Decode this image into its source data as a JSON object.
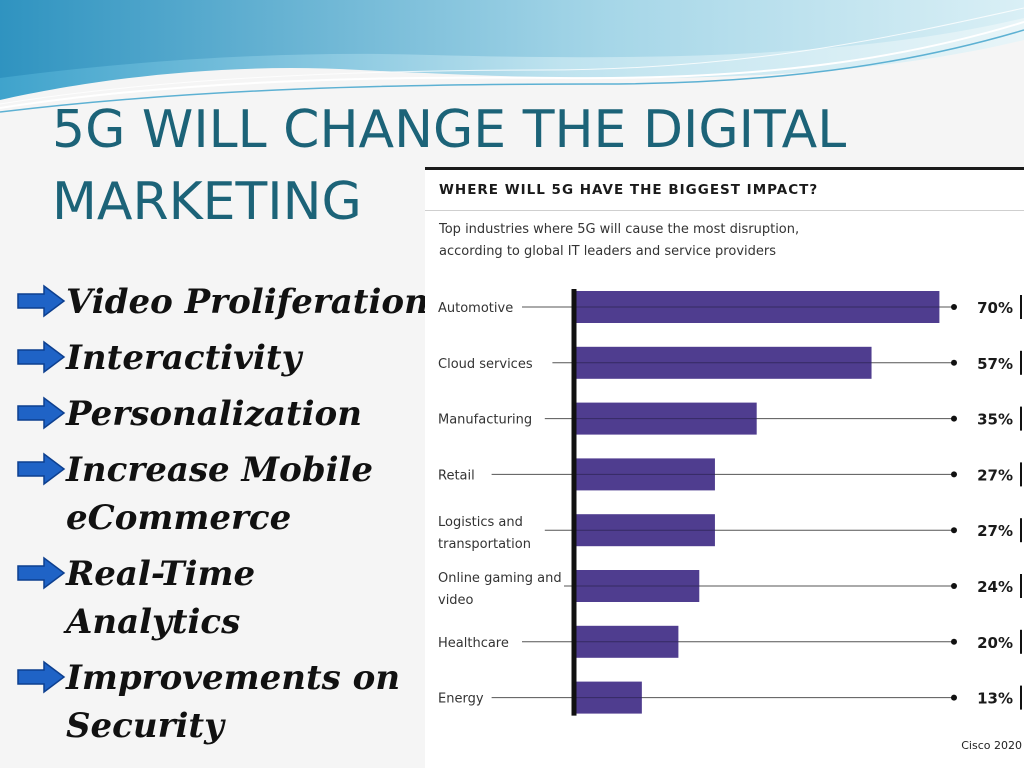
{
  "slide": {
    "title": "5G WILL CHANGE THE DIGITAL MARKETING",
    "bullets": [
      "Video Proliferation",
      "Interactivity",
      "Personalization",
      "Increase Mobile eCommerce",
      "Real-Time Analytics",
      "Improvements on Security"
    ]
  },
  "colors": {
    "title": "#1c6378",
    "bar": "#4f3d8f",
    "arrow": "#1f63c6"
  },
  "chart_data": {
    "type": "bar",
    "orientation": "horizontal",
    "title": "WHERE WILL 5G HAVE THE BIGGEST IMPACT?",
    "subtitle": "Top industries where 5G will cause the most disruption, according to global IT leaders and service providers",
    "categories": [
      "Automotive",
      "Cloud services",
      "Manufacturing",
      "Retail",
      "Logistics and transportation",
      "Online gaming and video",
      "Healthcare",
      "Energy"
    ],
    "values": [
      70,
      57,
      35,
      27,
      27,
      24,
      20,
      13
    ],
    "value_labels": [
      "70%",
      "57%",
      "35%",
      "27%",
      "27%",
      "24%",
      "20%",
      "13%"
    ],
    "xlim": [
      0,
      100
    ],
    "source": "Cisco 2020"
  }
}
